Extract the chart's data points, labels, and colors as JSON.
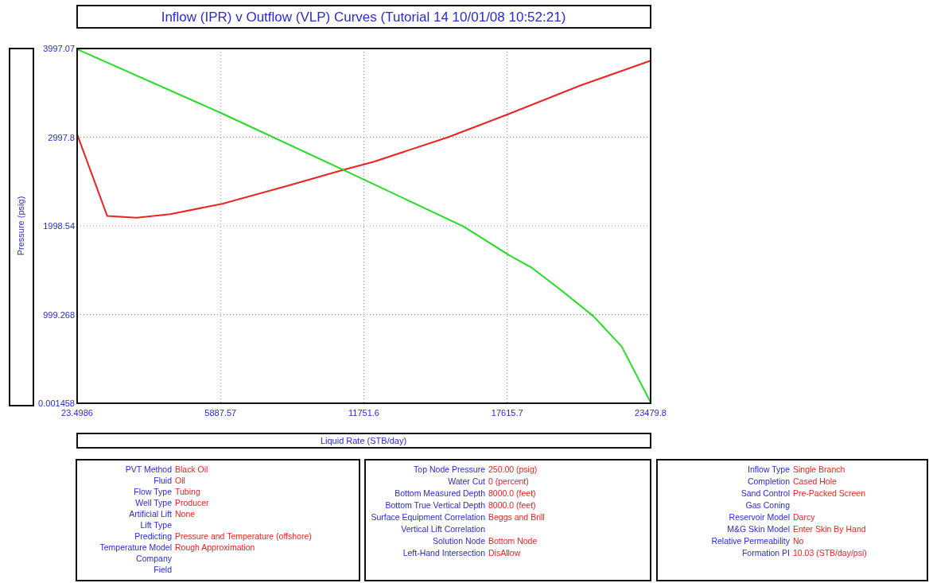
{
  "chart_data": [
    {
      "type": "line",
      "title": "Inflow (IPR) v Outflow (VLP) Curves (Tutorial 14 10/01/08 10:52:21)",
      "xlabel": "Liquid Rate  (STB/day)",
      "ylabel": "Pressure  (psig)",
      "xlim": [
        23.4986,
        23479.8
      ],
      "ylim": [
        0.001458,
        3997.07
      ],
      "xticks": [
        23.4986,
        5887.57,
        11751.6,
        17615.7,
        23479.8
      ],
      "yticks": [
        0.001458,
        999.268,
        1998.54,
        2997.8,
        3997.07
      ],
      "grid": true,
      "series": [
        {
          "color": "#ee2222",
          "x": [
            23.4986,
            1254,
            2454,
            3838,
            5991,
            8760,
            10913,
            12144,
            15220,
            17681,
            20604,
            23479.8
          ],
          "values": [
            3030,
            2110,
            2090,
            2130,
            2250,
            2460,
            2630,
            2720,
            3000,
            3260,
            3580,
            3860
          ]
        },
        {
          "color": "#22dd22",
          "x": [
            23.4986,
            5991,
            10913,
            15835,
            17681,
            18604,
            19835,
            21143,
            22296,
            23479.8
          ],
          "values": [
            3990,
            3260,
            2630,
            1990,
            1670,
            1530,
            1270,
            980,
            640,
            10
          ]
        }
      ]
    },
    {
      "type": "other",
      "categories": [
        "PVT Method",
        "Fluid",
        "Flow Type",
        "Well Type",
        "Artificial Lift",
        "Lift Type",
        "Predicting",
        "Temperature Model",
        "Company",
        "Field"
      ],
      "value_labels": [
        "Black Oil",
        "Oil",
        "Tubing",
        "Producer",
        "None",
        null,
        "Pressure and Temperature (offshore)",
        "Rough Approximation",
        null,
        null
      ]
    },
    {
      "type": "other",
      "categories": [
        "Top Node Pressure",
        "Water Cut",
        "Bottom Measured Depth",
        "Bottom True Vertical Depth",
        "Surface Equipment Correlation",
        "Vertical Lift Correlation",
        "Solution Node",
        "Left-Hand Intersection"
      ],
      "value_labels": [
        "250.00 (psig)",
        "0 (percent)",
        "8000.0 (feet)",
        "8000.0 (feet)",
        "Beggs and Brill",
        null,
        "Bottom Node",
        "DisAllow"
      ]
    },
    {
      "type": "other",
      "categories": [
        "Inflow Type",
        "Completion",
        "Sand Control",
        "Gas Coning",
        "Reservoir Model",
        "M&G Skin Model",
        "Relative Permeability",
        "Formation PI"
      ],
      "value_labels": [
        "Single Branch",
        "Cased Hole",
        "Pre-Packed Screen",
        null,
        "Darcy",
        "Enter Skin By Hand",
        "No",
        "10.03 (STB/day/psi)"
      ]
    }
  ]
}
